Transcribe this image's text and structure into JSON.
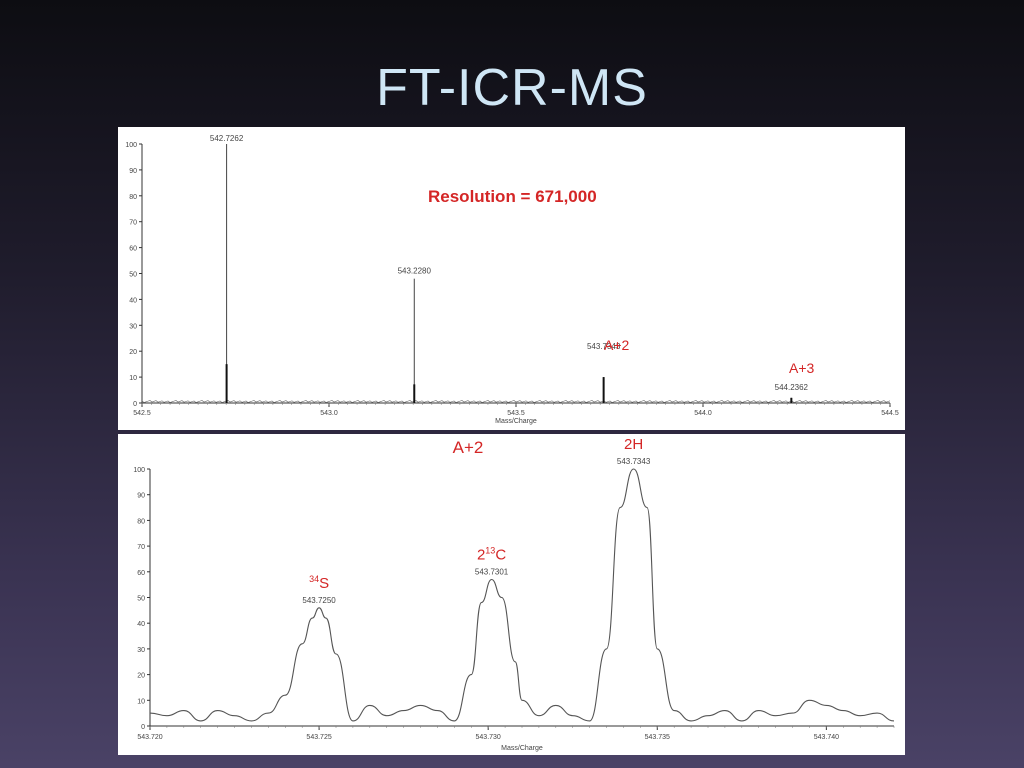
{
  "slide": {
    "title": "FT-ICR-MS"
  },
  "colors": {
    "annotation": "#d42626",
    "trace": "#555555",
    "axis": "#333333",
    "label": "#444444"
  },
  "chart_data": [
    {
      "type": "line",
      "title": "",
      "xlabel": "Mass/Charge",
      "ylabel": "",
      "xlim": [
        542.5,
        544.5
      ],
      "ylim": [
        0,
        100
      ],
      "x_ticks": [
        542.5,
        543.0,
        543.5,
        544.0,
        544.5
      ],
      "x_tick_labels": [
        "542.5",
        "543.0",
        "543.5",
        "544.0",
        "544.5"
      ],
      "y_ticks": [
        0,
        10,
        20,
        30,
        40,
        50,
        60,
        70,
        80,
        90,
        100
      ],
      "peaks": [
        {
          "x": 542.7262,
          "y": 100,
          "label": "542.7262"
        },
        {
          "x": 543.228,
          "y": 48,
          "label": "543.2280"
        },
        {
          "x": 543.7343,
          "y": 10,
          "label": "543.7343"
        },
        {
          "x": 544.2362,
          "y": 2,
          "label": "544.2362"
        }
      ],
      "annotations": [
        {
          "text": "Resolution = 671,000"
        },
        {
          "text": "A+2"
        },
        {
          "text": "A+3"
        }
      ]
    },
    {
      "type": "line",
      "title": "A+2",
      "xlabel": "Mass/Charge",
      "ylabel": "",
      "xlim": [
        543.72,
        543.742
      ],
      "ylim": [
        0,
        100
      ],
      "x_ticks": [
        543.72,
        543.725,
        543.73,
        543.735,
        543.74
      ],
      "x_tick_labels": [
        "543.720",
        "543.725",
        "543.730",
        "543.735",
        "543.740"
      ],
      "y_ticks": [
        0,
        10,
        20,
        30,
        40,
        50,
        60,
        70,
        80,
        90,
        100
      ],
      "series": [
        {
          "x": [
            543.72,
            543.7205,
            543.721,
            543.7215,
            543.722,
            543.7225,
            543.723,
            543.7235,
            543.724,
            543.7245,
            543.7248,
            543.725,
            543.7252,
            543.7255,
            543.726,
            543.7265,
            543.727,
            543.7275,
            543.728,
            543.7285,
            543.729,
            543.7295,
            543.7298,
            543.7301,
            543.7304,
            543.7308,
            543.731,
            543.7315,
            543.732,
            543.7325,
            543.733,
            543.7335,
            543.7339,
            543.7343,
            543.7347,
            543.735,
            543.7355,
            543.736,
            543.7365,
            543.737,
            543.7375,
            543.738,
            543.7385,
            543.739,
            543.7395,
            543.74,
            543.7405,
            543.741,
            543.7415,
            543.742
          ],
          "y": [
            5,
            4,
            6,
            2,
            6,
            4,
            2,
            5,
            12,
            32,
            42,
            46,
            42,
            28,
            2,
            8,
            4,
            6,
            8,
            6,
            2,
            20,
            48,
            57,
            50,
            25,
            10,
            4,
            8,
            4,
            2,
            30,
            85,
            100,
            85,
            30,
            6,
            2,
            4,
            6,
            2,
            6,
            4,
            5,
            10,
            8,
            6,
            4,
            5,
            2
          ]
        }
      ],
      "peaks": [
        {
          "x": 543.725,
          "y": 46,
          "label": "543.7250",
          "species_sup": "34",
          "species": "S"
        },
        {
          "x": 543.7301,
          "y": 57,
          "label": "543.7301",
          "species_prefix": "2",
          "species_sup": "13",
          "species": "C"
        },
        {
          "x": 543.7343,
          "y": 100,
          "label": "543.7343",
          "species": "2H"
        }
      ]
    }
  ]
}
